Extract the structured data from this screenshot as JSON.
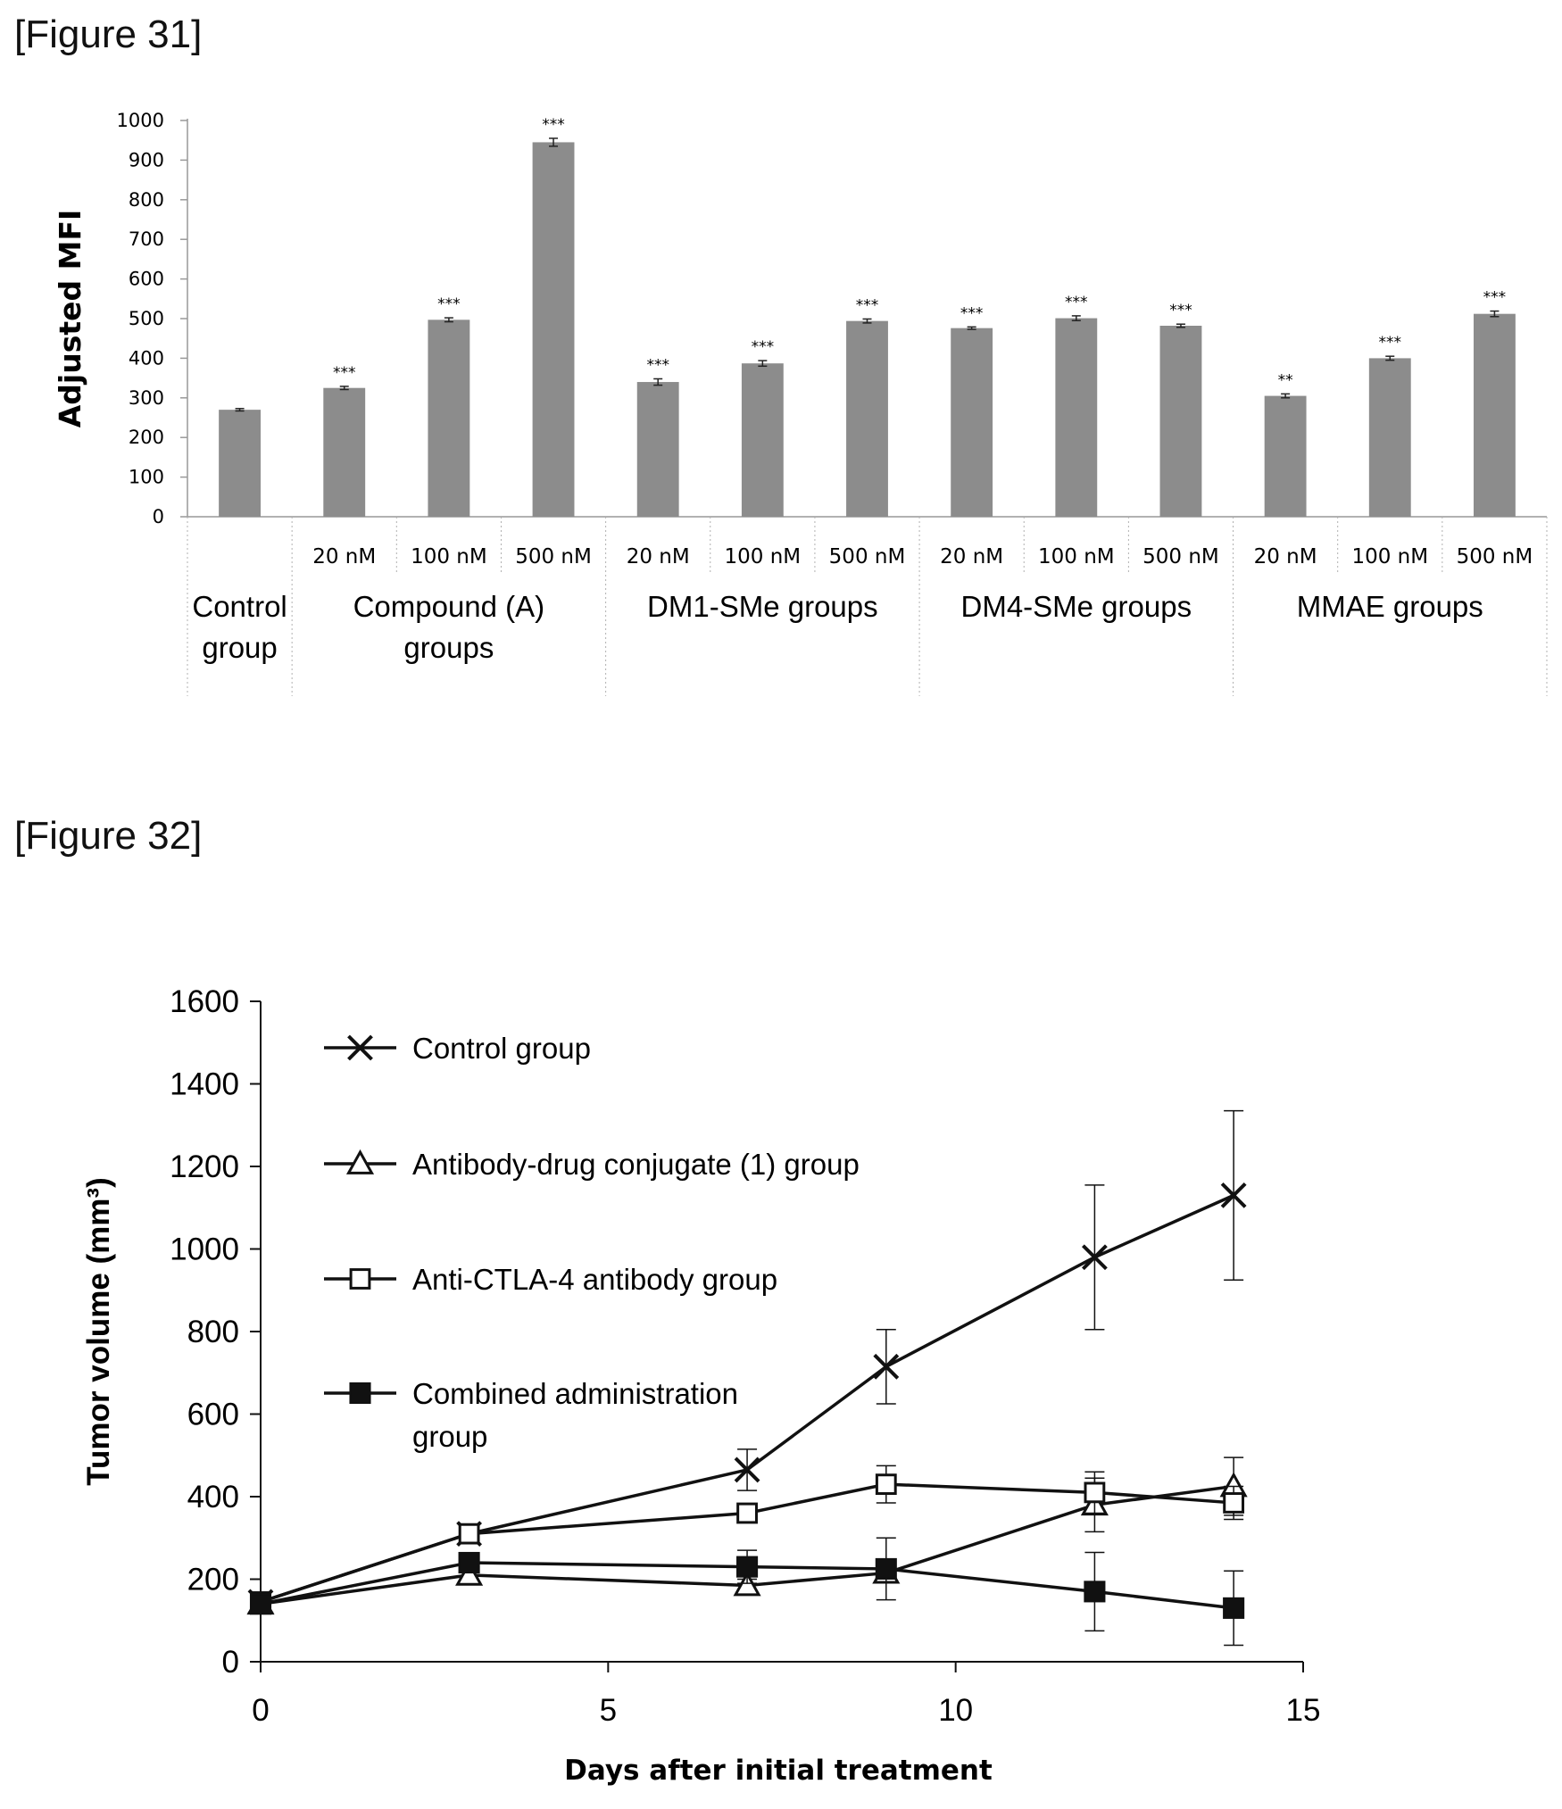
{
  "figures": {
    "fig31_label": "[Figure 31]",
    "fig32_label": "[Figure 32]"
  },
  "chart_data": [
    {
      "type": "bar",
      "ylabel": "Adjusted MFI",
      "ylim": [
        0,
        1000
      ],
      "yticks": [
        0,
        100,
        200,
        300,
        400,
        500,
        600,
        700,
        800,
        900,
        1000
      ],
      "grid": false,
      "bars": [
        {
          "group": 0,
          "concentration": "",
          "value": 270,
          "error": 3,
          "sig": ""
        },
        {
          "group": 1,
          "concentration": "20 nM",
          "value": 325,
          "error": 4,
          "sig": "***"
        },
        {
          "group": 1,
          "concentration": "100 nM",
          "value": 497,
          "error": 5,
          "sig": "***"
        },
        {
          "group": 1,
          "concentration": "500 nM",
          "value": 945,
          "error": 10,
          "sig": "***"
        },
        {
          "group": 2,
          "concentration": "20 nM",
          "value": 340,
          "error": 8,
          "sig": "***"
        },
        {
          "group": 2,
          "concentration": "100 nM",
          "value": 387,
          "error": 7,
          "sig": "***"
        },
        {
          "group": 2,
          "concentration": "500 nM",
          "value": 494,
          "error": 5,
          "sig": "***"
        },
        {
          "group": 3,
          "concentration": "20 nM",
          "value": 476,
          "error": 3,
          "sig": "***"
        },
        {
          "group": 3,
          "concentration": "100 nM",
          "value": 501,
          "error": 6,
          "sig": "***"
        },
        {
          "group": 3,
          "concentration": "500 nM",
          "value": 482,
          "error": 4,
          "sig": "***"
        },
        {
          "group": 4,
          "concentration": "20 nM",
          "value": 305,
          "error": 5,
          "sig": "**"
        },
        {
          "group": 4,
          "concentration": "100 nM",
          "value": 400,
          "error": 5,
          "sig": "***"
        },
        {
          "group": 4,
          "concentration": "500 nM",
          "value": 512,
          "error": 7,
          "sig": "***"
        }
      ],
      "groups": [
        {
          "lines": [
            "Control",
            "group"
          ]
        },
        {
          "lines": [
            "Compound (A)",
            "groups"
          ]
        },
        {
          "lines": [
            "DM1-SMe groups"
          ]
        },
        {
          "lines": [
            "DM4-SMe groups"
          ]
        },
        {
          "lines": [
            "MMAE groups"
          ]
        }
      ]
    },
    {
      "type": "line",
      "xlabel": "Days after initial treatment",
      "ylabel": "Tumor volume (mm³)",
      "xlim": [
        0,
        15
      ],
      "ylim": [
        0,
        1600
      ],
      "xticks": [
        0,
        5,
        10,
        15
      ],
      "yticks": [
        0,
        200,
        400,
        600,
        800,
        1000,
        1200,
        1400,
        1600
      ],
      "grid": false,
      "legend_position": "top-left",
      "series": [
        {
          "name": "Control group",
          "marker": "x",
          "x": [
            0,
            3,
            7,
            9,
            12,
            14
          ],
          "y": [
            145,
            310,
            465,
            715,
            980,
            1130
          ],
          "err": [
            10,
            15,
            50,
            90,
            175,
            205
          ]
        },
        {
          "name": "Antibody-drug conjugate (1) group",
          "marker": "triangle",
          "x": [
            0,
            3,
            7,
            9,
            12,
            14
          ],
          "y": [
            140,
            210,
            185,
            215,
            380,
            425
          ],
          "err": [
            10,
            15,
            15,
            15,
            65,
            70
          ]
        },
        {
          "name": "Anti-CTLA-4 antibody group",
          "marker": "square-open",
          "x": [
            0,
            3,
            7,
            9,
            12,
            14
          ],
          "y": [
            145,
            310,
            360,
            430,
            410,
            385
          ],
          "err": [
            10,
            15,
            15,
            45,
            50,
            40
          ]
        },
        {
          "name": "Combined administration group",
          "name_lines": [
            "Combined administration",
            "group"
          ],
          "marker": "square-filled",
          "x": [
            0,
            3,
            7,
            9,
            12,
            14
          ],
          "y": [
            140,
            240,
            230,
            225,
            170,
            130
          ],
          "err": [
            10,
            20,
            40,
            75,
            95,
            90
          ]
        }
      ]
    }
  ]
}
